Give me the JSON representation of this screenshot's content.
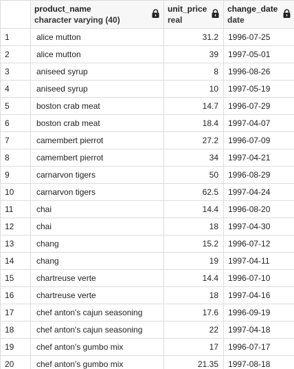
{
  "columns": [
    {
      "name": "product_name",
      "type": "character varying (40)",
      "icon": "lock-icon"
    },
    {
      "name": "unit_price",
      "type": "real",
      "icon": "lock-icon"
    },
    {
      "name": "change_date",
      "type": "date",
      "icon": "lock-icon"
    }
  ],
  "rows": [
    {
      "num": "1",
      "product_name": "alice mutton",
      "unit_price": "31.2",
      "change_date": "1996-07-25"
    },
    {
      "num": "2",
      "product_name": "alice mutton",
      "unit_price": "39",
      "change_date": "1997-05-01"
    },
    {
      "num": "3",
      "product_name": "aniseed syrup",
      "unit_price": "8",
      "change_date": "1996-08-26"
    },
    {
      "num": "4",
      "product_name": "aniseed syrup",
      "unit_price": "10",
      "change_date": "1997-05-19"
    },
    {
      "num": "5",
      "product_name": "boston crab meat",
      "unit_price": "14.7",
      "change_date": "1996-07-29"
    },
    {
      "num": "6",
      "product_name": "boston crab meat",
      "unit_price": "18.4",
      "change_date": "1997-04-07"
    },
    {
      "num": "7",
      "product_name": "camembert pierrot",
      "unit_price": "27.2",
      "change_date": "1996-07-09"
    },
    {
      "num": "8",
      "product_name": "camembert pierrot",
      "unit_price": "34",
      "change_date": "1997-04-21"
    },
    {
      "num": "9",
      "product_name": "carnarvon tigers",
      "unit_price": "50",
      "change_date": "1996-08-29"
    },
    {
      "num": "10",
      "product_name": "carnarvon tigers",
      "unit_price": "62.5",
      "change_date": "1997-04-24"
    },
    {
      "num": "11",
      "product_name": "chai",
      "unit_price": "14.4",
      "change_date": "1996-08-20"
    },
    {
      "num": "12",
      "product_name": "chai",
      "unit_price": "18",
      "change_date": "1997-04-30"
    },
    {
      "num": "13",
      "product_name": "chang",
      "unit_price": "15.2",
      "change_date": "1996-07-12"
    },
    {
      "num": "14",
      "product_name": "chang",
      "unit_price": "19",
      "change_date": "1997-04-11"
    },
    {
      "num": "15",
      "product_name": "chartreuse verte",
      "unit_price": "14.4",
      "change_date": "1996-07-10"
    },
    {
      "num": "16",
      "product_name": "chartreuse verte",
      "unit_price": "18",
      "change_date": "1997-04-16"
    },
    {
      "num": "17",
      "product_name": "chef anton's cajun seasoning",
      "unit_price": "17.6",
      "change_date": "1996-09-19"
    },
    {
      "num": "18",
      "product_name": "chef anton's cajun seasoning",
      "unit_price": "22",
      "change_date": "1997-04-18"
    },
    {
      "num": "19",
      "product_name": "chef anton's gumbo mix",
      "unit_price": "17",
      "change_date": "1996-07-17"
    },
    {
      "num": "20",
      "product_name": "chef anton's gumbo mix",
      "unit_price": "21.35",
      "change_date": "1997-08-18"
    }
  ]
}
